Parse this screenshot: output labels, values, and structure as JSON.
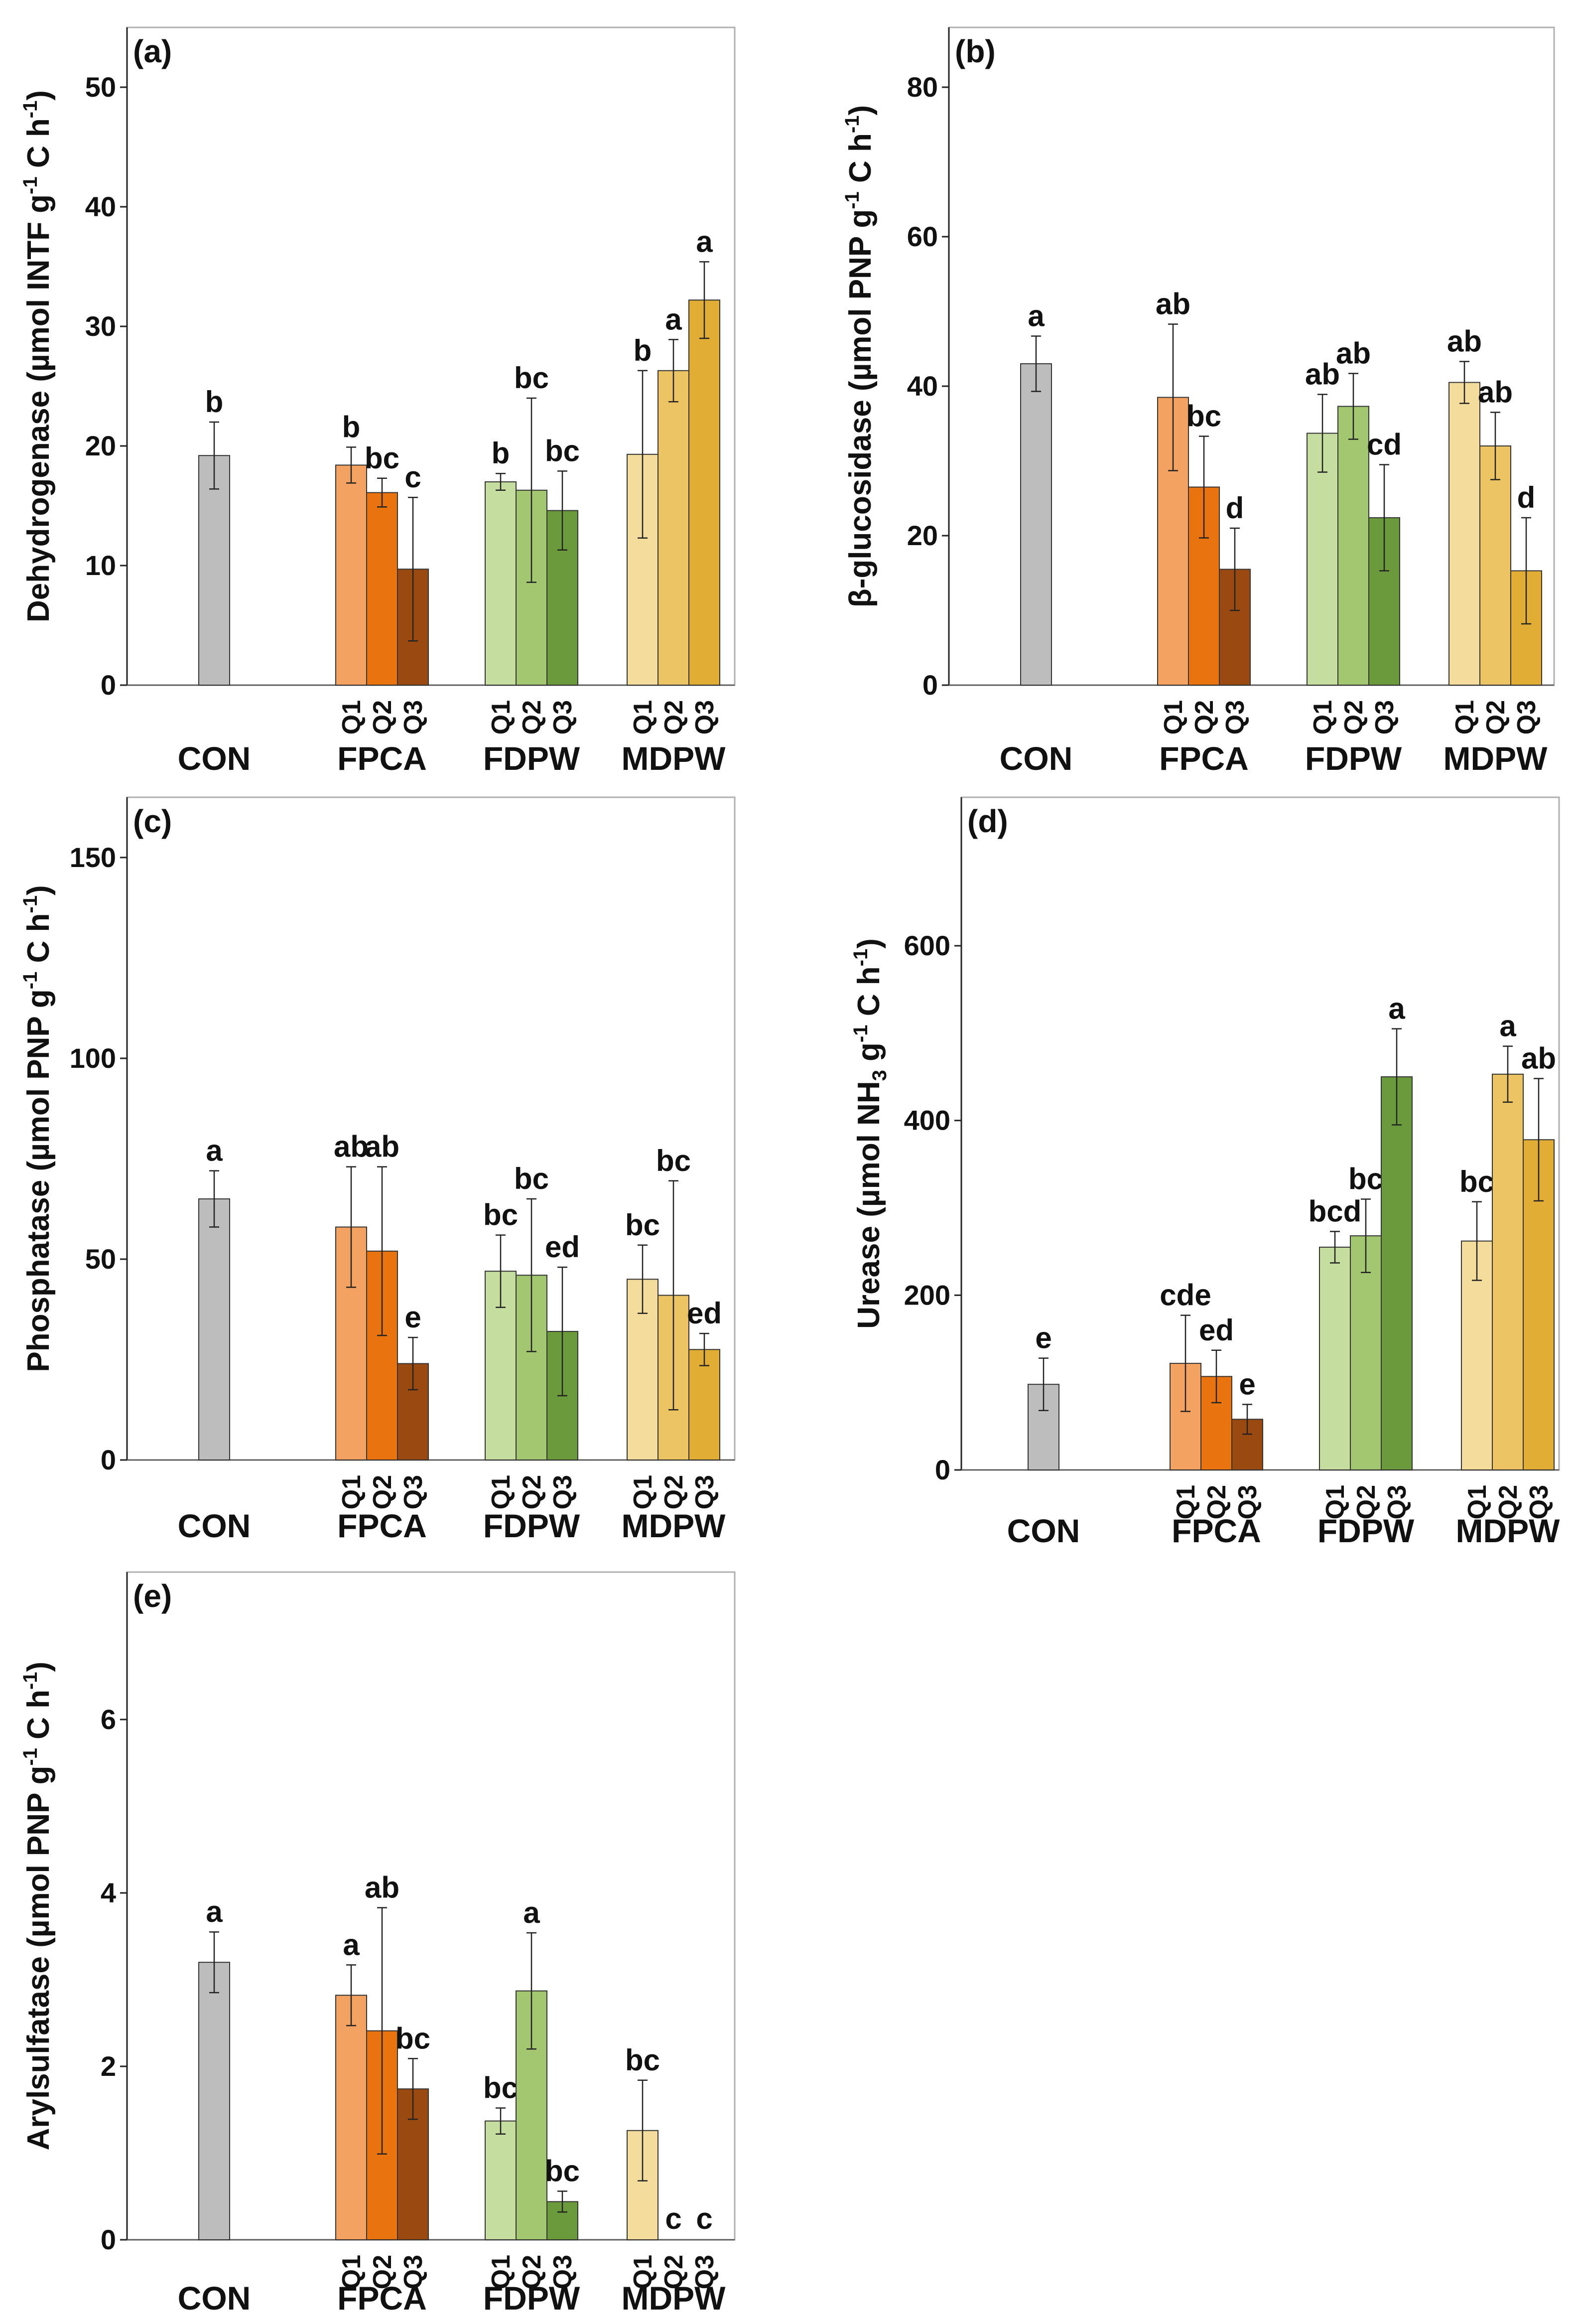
{
  "colors": {
    "CON": "#bdbdbd",
    "FPCA": [
      "#f4a261",
      "#e8730f",
      "#9a4a10"
    ],
    "FDPW": [
      "#c5dd9f",
      "#a3c770",
      "#6b9a3c"
    ],
    "MDPW": [
      "#f3dc9c",
      "#ecc463",
      "#e2ad34"
    ]
  },
  "chart_data": [
    {
      "type": "bar",
      "panel": "(a)",
      "ylabel_main": "Dehydrogenase (µmol INTF g",
      "ylabel_sup1": "-1",
      "ylabel_mid": " C h",
      "ylabel_sup2": "-1",
      "ylabel_end": ")",
      "ylim": [
        0,
        55
      ],
      "yticks": [
        "0",
        "10",
        "20",
        "30",
        "40",
        "50"
      ],
      "groups": [
        "CON",
        "FPCA",
        "FDPW",
        "MDPW"
      ],
      "subcategories": [
        "Q1",
        "Q2",
        "Q3"
      ],
      "CON": {
        "value": 19.2,
        "err": 2.8,
        "label": "b"
      },
      "series": [
        {
          "group": "FPCA",
          "values": [
            18.4,
            16.1,
            9.7
          ],
          "errors": [
            1.5,
            1.2,
            6.0
          ],
          "labels": [
            "b",
            "bc",
            "c"
          ]
        },
        {
          "group": "FDPW",
          "values": [
            17.0,
            16.3,
            14.6
          ],
          "errors": [
            0.7,
            7.7,
            3.3
          ],
          "labels": [
            "b",
            "bc",
            "bc"
          ]
        },
        {
          "group": "MDPW",
          "values": [
            19.3,
            26.3,
            32.2
          ],
          "errors": [
            7.0,
            2.6,
            3.2
          ],
          "labels": [
            "b",
            "a",
            "a"
          ]
        }
      ]
    },
    {
      "type": "bar",
      "panel": "(b)",
      "ylabel_main": "β-glucosidase (µmol PNP g",
      "ylabel_sup1": "-1",
      "ylabel_mid": " C h",
      "ylabel_sup2": "-1",
      "ylabel_end": ")",
      "ylim": [
        0,
        88
      ],
      "yticks": [
        "0",
        "20",
        "40",
        "60",
        "80"
      ],
      "groups": [
        "CON",
        "FPCA",
        "FDPW",
        "MDPW"
      ],
      "subcategories": [
        "Q1",
        "Q2",
        "Q3"
      ],
      "CON": {
        "value": 43.0,
        "err": 3.7,
        "label": "a"
      },
      "series": [
        {
          "group": "FPCA",
          "values": [
            38.5,
            26.5,
            15.5
          ],
          "errors": [
            9.8,
            6.8,
            5.5
          ],
          "labels": [
            "ab",
            "bc",
            "d"
          ]
        },
        {
          "group": "FDPW",
          "values": [
            33.7,
            37.3,
            22.4
          ],
          "errors": [
            5.2,
            4.4,
            7.1
          ],
          "labels": [
            "ab",
            "ab",
            "cd"
          ]
        },
        {
          "group": "MDPW",
          "values": [
            40.5,
            32.0,
            15.3
          ],
          "errors": [
            2.8,
            4.5,
            7.1
          ],
          "labels": [
            "ab",
            "ab",
            "d"
          ]
        }
      ]
    },
    {
      "type": "bar",
      "panel": "(c)",
      "ylabel_main": "Phosphatase (µmol PNP g",
      "ylabel_sup1": "-1",
      "ylabel_mid": " C h",
      "ylabel_sup2": "-1",
      "ylabel_end": ")",
      "ylim": [
        0,
        165
      ],
      "yticks": [
        "0",
        "50",
        "100",
        "150"
      ],
      "groups": [
        "CON",
        "FPCA",
        "FDPW",
        "MDPW"
      ],
      "subcategories": [
        "Q1",
        "Q2",
        "Q3"
      ],
      "CON": {
        "value": 65.0,
        "err": 7.0,
        "label": "a"
      },
      "series": [
        {
          "group": "FPCA",
          "values": [
            58.0,
            52.0,
            24.0
          ],
          "errors": [
            15.0,
            21.0,
            6.5
          ],
          "labels": [
            "ab",
            "ab",
            "e"
          ]
        },
        {
          "group": "FDPW",
          "values": [
            47.0,
            46.0,
            32.0
          ],
          "errors": [
            9.0,
            19.0,
            16.0
          ],
          "labels": [
            "bc",
            "bc",
            "ed"
          ]
        },
        {
          "group": "MDPW",
          "values": [
            45.0,
            41.0,
            27.5
          ],
          "errors": [
            8.5,
            28.5,
            4.0
          ],
          "labels": [
            "bc",
            "bc",
            "ed"
          ]
        }
      ]
    },
    {
      "type": "bar",
      "panel": "(d)",
      "ylabel_main": "Urease (µmol NH",
      "ylabel_sub": "3",
      "ylabel_after_sub": " g",
      "ylabel_sup1": "-1",
      "ylabel_mid": " C h",
      "ylabel_sup2": "-1",
      "ylabel_end": ")",
      "ylim": [
        0,
        770
      ],
      "yticks": [
        "0",
        "200",
        "400",
        "600"
      ],
      "groups": [
        "CON",
        "FPCA",
        "FDPW",
        "MDPW"
      ],
      "subcategories": [
        "Q1",
        "Q2",
        "Q3"
      ],
      "CON": {
        "value": 98.0,
        "err": 30.0,
        "label": "e"
      },
      "series": [
        {
          "group": "FPCA",
          "values": [
            122.0,
            107.0,
            58.0
          ],
          "errors": [
            55.0,
            30.0,
            17.0
          ],
          "labels": [
            "cde",
            "ed",
            "e"
          ]
        },
        {
          "group": "FDPW",
          "values": [
            255.0,
            268.0,
            450.0
          ],
          "errors": [
            18.0,
            42.0,
            55.0
          ],
          "labels": [
            "bcd",
            "bc",
            "a"
          ]
        },
        {
          "group": "MDPW",
          "values": [
            262.0,
            453.0,
            378.0
          ],
          "errors": [
            45.0,
            32.0,
            70.0
          ],
          "labels": [
            "bc",
            "a",
            "ab"
          ]
        }
      ]
    },
    {
      "type": "bar",
      "panel": "(e)",
      "ylabel_main": "Arylsulfatase (µmol PNP g",
      "ylabel_sup1": "-1",
      "ylabel_mid": " C h",
      "ylabel_sup2": "-1",
      "ylabel_end": ")",
      "ylim": [
        0,
        7.7
      ],
      "yticks": [
        "0",
        "2",
        "4",
        "6"
      ],
      "groups": [
        "CON",
        "FPCA",
        "FDPW",
        "MDPW"
      ],
      "subcategories": [
        "Q1",
        "Q2",
        "Q3"
      ],
      "CON": {
        "value": 3.2,
        "err": 0.35,
        "label": "a"
      },
      "series": [
        {
          "group": "FPCA",
          "values": [
            2.82,
            2.41,
            1.74
          ],
          "errors": [
            0.35,
            1.42,
            0.35
          ],
          "labels": [
            "a",
            "ab",
            "bc"
          ]
        },
        {
          "group": "FDPW",
          "values": [
            1.37,
            2.87,
            0.44
          ],
          "errors": [
            0.15,
            0.67,
            0.12
          ],
          "labels": [
            "bc",
            "a",
            "bc"
          ]
        },
        {
          "group": "MDPW",
          "values": [
            1.26,
            0.0,
            0.0
          ],
          "errors": [
            0.58,
            0.0,
            0.0
          ],
          "labels": [
            "bc",
            "c",
            "c"
          ]
        }
      ]
    }
  ]
}
